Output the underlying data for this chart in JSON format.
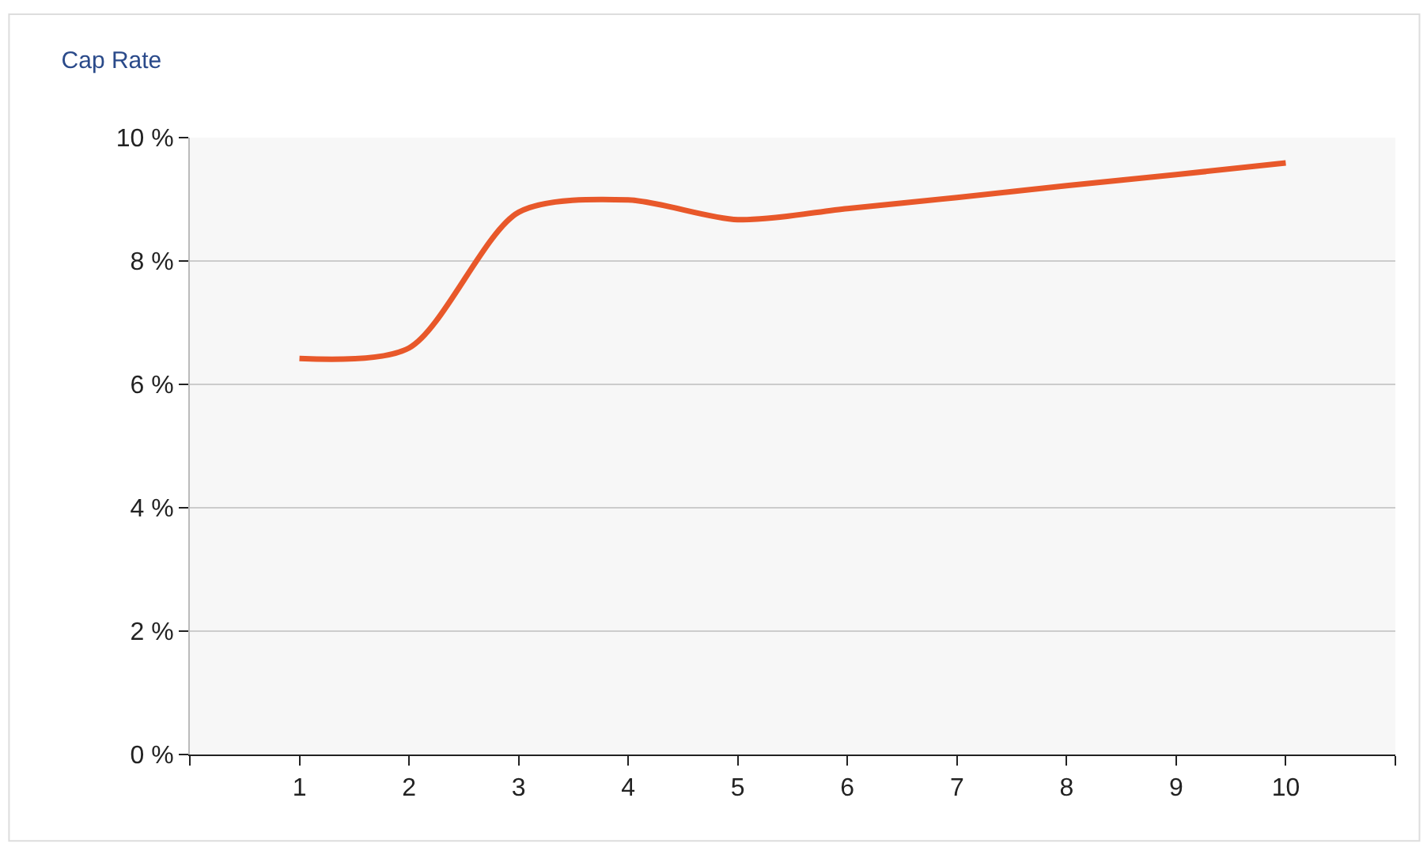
{
  "chart_data": {
    "type": "line",
    "title": "Cap Rate",
    "x": [
      1,
      2,
      3,
      4,
      5,
      6,
      7,
      8,
      9,
      10
    ],
    "series": [
      {
        "color": "#e8582a",
        "values": [
          6.42,
          6.59,
          8.79,
          8.99,
          8.67,
          8.85,
          9.03,
          9.22,
          9.4,
          9.59
        ]
      }
    ],
    "xlim": [
      0,
      11
    ],
    "xticks": [
      {
        "value": 0,
        "label": null
      },
      1,
      2,
      3,
      4,
      5,
      6,
      7,
      8,
      9,
      10,
      {
        "value": 11,
        "label": null
      }
    ],
    "ylim": [
      0,
      10
    ],
    "yticks": [
      {
        "value": 0,
        "label": "0 %"
      },
      {
        "value": 2,
        "label": "2 %"
      },
      {
        "value": 4,
        "label": "4 %"
      },
      {
        "value": 6,
        "label": "6 %"
      },
      {
        "value": 8,
        "label": "8 %"
      },
      {
        "value": 10,
        "label": "10 %"
      }
    ],
    "grid": "y",
    "legend": false,
    "marker": "none",
    "line_style": "solid"
  }
}
